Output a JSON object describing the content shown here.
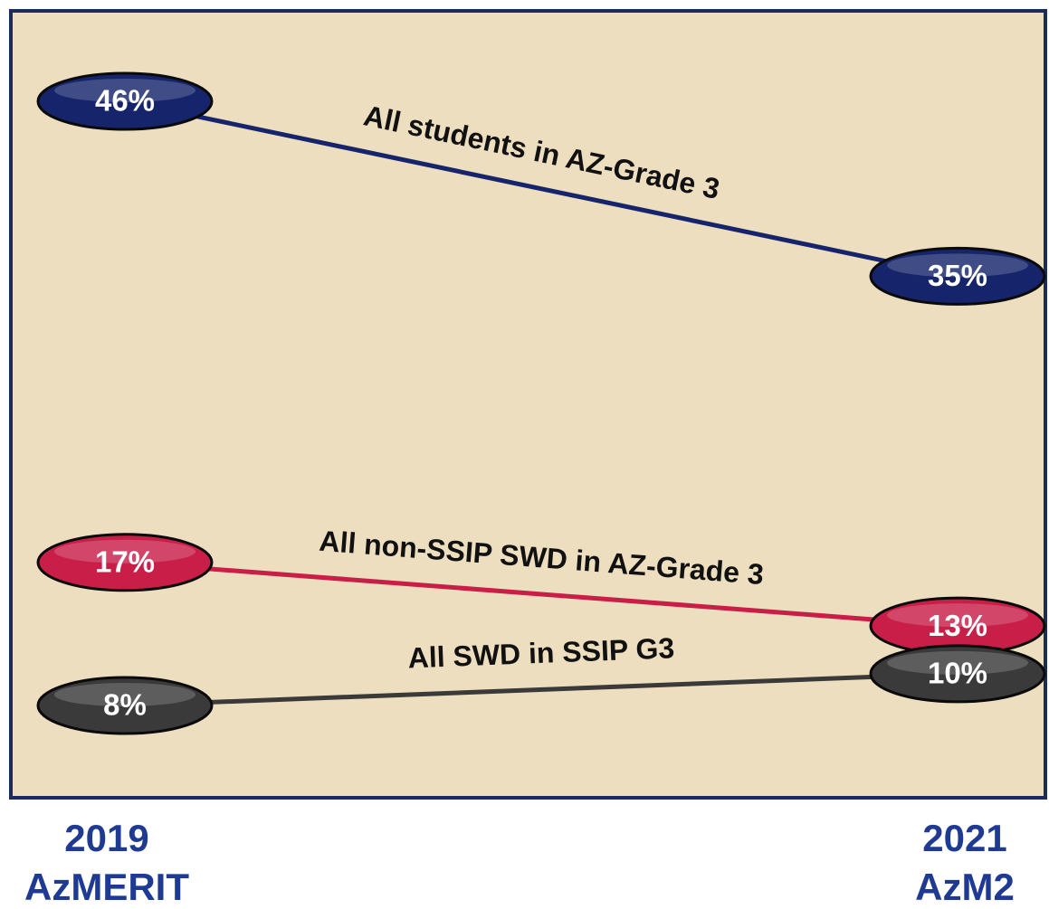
{
  "chart_data": {
    "type": "slope",
    "categories": [
      "2019",
      "2021"
    ],
    "category_sublabels": [
      "AzMERIT",
      "AzM2"
    ],
    "series": [
      {
        "name": "All students in AZ-Grade 3",
        "color": "#16256b",
        "values": [
          46,
          35
        ],
        "value_labels": [
          "46%",
          "35%"
        ]
      },
      {
        "name": "All non-SSIP SWD in AZ-Grade 3",
        "color": "#c81e48",
        "values": [
          17,
          13
        ],
        "value_labels": [
          "17%",
          "13%"
        ]
      },
      {
        "name": "All SWD in SSIP G3",
        "color": "#3a3a3a",
        "values": [
          8,
          10
        ],
        "value_labels": [
          "8%",
          "10%"
        ]
      }
    ]
  }
}
